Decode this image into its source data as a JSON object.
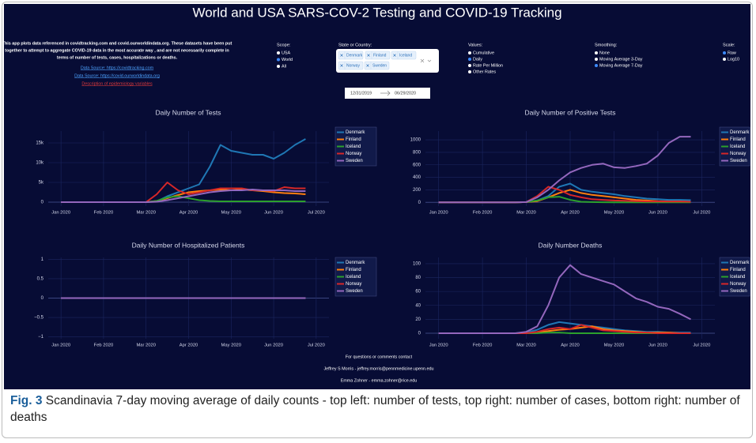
{
  "app": {
    "title": "World and USA SARS-COV-2 Testing and COVID-19 Tracking",
    "intro_lines": [
      "This app plots data referenced in covidtracking.com and covid.ourworldindata.org. These datasets have been put",
      "together to attempt to aggregate COVID-19 data in the most accurate way , and are not necessarily complete in",
      "terms of number of tests, cases, hospitalizations or deaths."
    ],
    "links": [
      "Data Source: https://covidtracking.com",
      "Data Source: https://covid.ourworldindata.org",
      "Description of epidemiology variables"
    ],
    "scope": {
      "label": "Scope:",
      "options": [
        "USA",
        "World",
        "All"
      ],
      "selected": "World"
    },
    "region": {
      "label": "State or Country:",
      "chips": [
        "Denmark",
        "Finland",
        "Iceland",
        "Norway",
        "Sweden"
      ]
    },
    "dates": {
      "start": "12/31/2019",
      "end": "06/29/2020"
    },
    "values_control": {
      "label": "Values:",
      "options": [
        "Cumulative",
        "Daily",
        "Rate Per Million",
        "Other Rates"
      ],
      "selected": "Daily"
    },
    "smoothing": {
      "label": "Smoothing:",
      "options": [
        "None",
        "Moving Average 3-Day",
        "Moving Average 7-Day"
      ],
      "selected": "Moving Average 7-Day"
    },
    "scale": {
      "label": "Scale:",
      "options": [
        "Raw",
        "Log10"
      ],
      "selected": "Raw"
    },
    "footer": [
      "For questions or comments contact",
      "Jeffrey S Morris - jeffrey.morris@pennmedicine.upenn.edu",
      "Emma Zohner - emma.zohner@rice.edu"
    ]
  },
  "caption": {
    "label": "Fig. 3",
    "text": "Scandinavia 7-day moving average of daily counts - top left: number of tests, top right: number of cases, bottom right: number of deaths"
  },
  "chart_data": [
    {
      "type": "line",
      "title": "Daily Number of Tests",
      "grid": true,
      "x": [
        0,
        0.25,
        0.5,
        0.75,
        1,
        1.25,
        1.5,
        1.75,
        2,
        2.25,
        2.5,
        2.75,
        3,
        3.25,
        3.5,
        3.75,
        4,
        4.25,
        4.5,
        4.75,
        5,
        5.25,
        5.5,
        5.75
      ],
      "xlim": [
        -0.3,
        6.3
      ],
      "xticks": [
        {
          "value": 0,
          "label": "Jan 2020"
        },
        {
          "value": 1,
          "label": "Feb 2020"
        },
        {
          "value": 2,
          "label": "Mar 2020"
        },
        {
          "value": 3,
          "label": "Apr 2020"
        },
        {
          "value": 4,
          "label": "May 2020"
        },
        {
          "value": 5,
          "label": "Jun 2020"
        },
        {
          "value": 6,
          "label": "Jul 2020"
        }
      ],
      "ylim": [
        -1000,
        18000
      ],
      "yticks": [
        0,
        {
          "value": 5000,
          "label": "5k"
        },
        {
          "value": 10000,
          "label": "10k"
        },
        {
          "value": 15000,
          "label": "15k"
        }
      ],
      "series": [
        {
          "name": "Denmark",
          "color": "#1f77b4",
          "values": [
            0,
            0,
            0,
            0,
            0,
            0,
            0,
            0,
            0,
            200,
            1500,
            2500,
            3500,
            4500,
            9000,
            14500,
            13000,
            12500,
            12000,
            12000,
            11000,
            12500,
            14500,
            16000
          ]
        },
        {
          "name": "Finland",
          "color": "#ff7f0e",
          "values": [
            0,
            0,
            0,
            0,
            0,
            0,
            0,
            0,
            0,
            300,
            1000,
            1800,
            2500,
            2800,
            3000,
            3200,
            3000,
            3200,
            3000,
            2800,
            2500,
            2300,
            2200,
            2000
          ]
        },
        {
          "name": "Iceland",
          "color": "#2ca02c",
          "values": [
            0,
            0,
            0,
            0,
            0,
            0,
            0,
            0,
            0,
            300,
            1200,
            1500,
            1000,
            500,
            300,
            200,
            200,
            200,
            200,
            200,
            200,
            200,
            200,
            200
          ]
        },
        {
          "name": "Norway",
          "color": "#d62728",
          "values": [
            0,
            0,
            0,
            0,
            0,
            0,
            0,
            0,
            0,
            2000,
            5000,
            3000,
            2000,
            2500,
            3000,
            3500,
            3500,
            3500,
            3000,
            3000,
            2800,
            3800,
            3500,
            3500
          ]
        },
        {
          "name": "Sweden",
          "color": "#9467bd",
          "values": [
            0,
            0,
            0,
            0,
            0,
            0,
            0,
            0,
            0,
            100,
            500,
            1000,
            1500,
            2000,
            2500,
            2800,
            3000,
            3000,
            3200,
            3000,
            3000,
            3000,
            2800,
            2800
          ]
        }
      ]
    },
    {
      "type": "line",
      "title": "Daily Number of Positive Tests",
      "grid": true,
      "x": [
        0,
        0.25,
        0.5,
        0.75,
        1,
        1.25,
        1.5,
        1.75,
        2,
        2.25,
        2.5,
        2.75,
        3,
        3.25,
        3.5,
        3.75,
        4,
        4.25,
        4.5,
        4.75,
        5,
        5.25,
        5.5,
        5.75
      ],
      "xlim": [
        -0.3,
        6.3
      ],
      "xticks": [
        {
          "value": 0,
          "label": "Jan 2020"
        },
        {
          "value": 1,
          "label": "Feb 2020"
        },
        {
          "value": 2,
          "label": "Mar 2020"
        },
        {
          "value": 3,
          "label": "Apr 2020"
        },
        {
          "value": 4,
          "label": "May 2020"
        },
        {
          "value": 5,
          "label": "Jun 2020"
        },
        {
          "value": 6,
          "label": "Jul 2020"
        }
      ],
      "ylim": [
        -60,
        1140
      ],
      "yticks": [
        0,
        200,
        400,
        600,
        800,
        1000
      ],
      "series": [
        {
          "name": "Denmark",
          "color": "#1f77b4",
          "values": [
            0,
            0,
            0,
            0,
            0,
            0,
            0,
            0,
            5,
            30,
            100,
            250,
            300,
            200,
            170,
            150,
            130,
            100,
            80,
            60,
            50,
            40,
            40,
            35
          ]
        },
        {
          "name": "Finland",
          "color": "#ff7f0e",
          "values": [
            0,
            0,
            0,
            0,
            0,
            0,
            0,
            0,
            5,
            20,
            80,
            150,
            200,
            150,
            120,
            100,
            80,
            60,
            40,
            30,
            20,
            15,
            15,
            10
          ]
        },
        {
          "name": "Iceland",
          "color": "#2ca02c",
          "values": [
            0,
            0,
            0,
            0,
            0,
            0,
            0,
            0,
            5,
            30,
            80,
            90,
            40,
            10,
            5,
            2,
            1,
            1,
            1,
            1,
            1,
            1,
            1,
            1
          ]
        },
        {
          "name": "Norway",
          "color": "#d62728",
          "values": [
            0,
            0,
            0,
            0,
            0,
            0,
            0,
            0,
            5,
            100,
            250,
            200,
            120,
            80,
            50,
            40,
            30,
            25,
            20,
            15,
            15,
            12,
            12,
            10
          ]
        },
        {
          "name": "Sweden",
          "color": "#9467bd",
          "values": [
            0,
            0,
            0,
            0,
            0,
            0,
            0,
            0,
            5,
            80,
            200,
            350,
            480,
            550,
            600,
            620,
            560,
            550,
            580,
            620,
            750,
            950,
            1050,
            1050
          ]
        }
      ]
    },
    {
      "type": "line",
      "title": "Daily Number of Hospitalized Patients",
      "grid": true,
      "x": [
        0,
        0.25,
        0.5,
        0.75,
        1,
        1.25,
        1.5,
        1.75,
        2,
        2.25,
        2.5,
        2.75,
        3,
        3.25,
        3.5,
        3.75,
        4,
        4.25,
        4.5,
        4.75,
        5,
        5.25,
        5.5,
        5.75
      ],
      "xlim": [
        -0.3,
        6.3
      ],
      "xticks": [
        {
          "value": 0,
          "label": "Jan 2020"
        },
        {
          "value": 1,
          "label": "Feb 2020"
        },
        {
          "value": 2,
          "label": "Mar 2020"
        },
        {
          "value": 3,
          "label": "Apr 2020"
        },
        {
          "value": 4,
          "label": "May 2020"
        },
        {
          "value": 5,
          "label": "Jun 2020"
        },
        {
          "value": 6,
          "label": "Jul 2020"
        }
      ],
      "ylim": [
        -1.05,
        1.05
      ],
      "yticks": [
        {
          "value": -1,
          "label": "−1"
        },
        {
          "value": -0.5,
          "label": "−0.5"
        },
        0,
        0.5,
        1
      ],
      "series": [
        {
          "name": "Denmark",
          "color": "#1f77b4",
          "values": [
            0,
            0,
            0,
            0,
            0,
            0,
            0,
            0,
            0,
            0,
            0,
            0,
            0,
            0,
            0,
            0,
            0,
            0,
            0,
            0,
            0,
            0,
            0,
            0
          ]
        },
        {
          "name": "Finland",
          "color": "#ff7f0e",
          "values": [
            0,
            0,
            0,
            0,
            0,
            0,
            0,
            0,
            0,
            0,
            0,
            0,
            0,
            0,
            0,
            0,
            0,
            0,
            0,
            0,
            0,
            0,
            0,
            0
          ]
        },
        {
          "name": "Iceland",
          "color": "#2ca02c",
          "values": [
            0,
            0,
            0,
            0,
            0,
            0,
            0,
            0,
            0,
            0,
            0,
            0,
            0,
            0,
            0,
            0,
            0,
            0,
            0,
            0,
            0,
            0,
            0,
            0
          ]
        },
        {
          "name": "Norway",
          "color": "#d62728",
          "values": [
            0,
            0,
            0,
            0,
            0,
            0,
            0,
            0,
            0,
            0,
            0,
            0,
            0,
            0,
            0,
            0,
            0,
            0,
            0,
            0,
            0,
            0,
            0,
            0
          ]
        },
        {
          "name": "Sweden",
          "color": "#9467bd",
          "values": [
            0,
            0,
            0,
            0,
            0,
            0,
            0,
            0,
            0,
            0,
            0,
            0,
            0,
            0,
            0,
            0,
            0,
            0,
            0,
            0,
            0,
            0,
            0,
            0
          ]
        }
      ]
    },
    {
      "type": "line",
      "title": "Daily Number Deaths",
      "grid": true,
      "x": [
        0,
        0.25,
        0.5,
        0.75,
        1,
        1.25,
        1.5,
        1.75,
        2,
        2.25,
        2.5,
        2.75,
        3,
        3.25,
        3.5,
        3.75,
        4,
        4.25,
        4.5,
        4.75,
        5,
        5.25,
        5.5,
        5.75
      ],
      "xlim": [
        -0.3,
        6.3
      ],
      "xticks": [
        {
          "value": 0,
          "label": "Jan 2020"
        },
        {
          "value": 1,
          "label": "Feb 2020"
        },
        {
          "value": 2,
          "label": "Mar 2020"
        },
        {
          "value": 3,
          "label": "Apr 2020"
        },
        {
          "value": 4,
          "label": "May 2020"
        },
        {
          "value": 5,
          "label": "Jun 2020"
        },
        {
          "value": 6,
          "label": "Jul 2020"
        }
      ],
      "ylim": [
        -8,
        109
      ],
      "yticks": [
        0,
        20,
        40,
        60,
        80,
        100
      ],
      "series": [
        {
          "name": "Denmark",
          "color": "#1f77b4",
          "values": [
            0,
            0,
            0,
            0,
            0,
            0,
            0,
            0,
            1,
            5,
            12,
            16,
            14,
            12,
            10,
            8,
            6,
            4,
            3,
            2,
            2,
            1,
            1,
            1
          ]
        },
        {
          "name": "Finland",
          "color": "#ff7f0e",
          "values": [
            0,
            0,
            0,
            0,
            0,
            0,
            0,
            0,
            0,
            1,
            3,
            5,
            6,
            8,
            10,
            6,
            4,
            3,
            2,
            1,
            1,
            1,
            0,
            0
          ]
        },
        {
          "name": "Iceland",
          "color": "#2ca02c",
          "values": [
            0,
            0,
            0,
            0,
            0,
            0,
            0,
            0,
            0,
            0,
            1,
            1,
            0,
            0,
            0,
            0,
            0,
            0,
            0,
            0,
            0,
            0,
            0,
            0
          ]
        },
        {
          "name": "Norway",
          "color": "#d62728",
          "values": [
            0,
            0,
            0,
            0,
            0,
            0,
            0,
            0,
            0,
            2,
            6,
            8,
            6,
            12,
            8,
            4,
            3,
            2,
            1,
            1,
            0,
            0,
            0,
            0
          ]
        },
        {
          "name": "Sweden",
          "color": "#9467bd",
          "values": [
            0,
            0,
            0,
            0,
            0,
            0,
            0,
            0,
            2,
            10,
            40,
            80,
            98,
            85,
            80,
            75,
            70,
            60,
            50,
            45,
            38,
            35,
            28,
            20
          ]
        }
      ]
    }
  ]
}
